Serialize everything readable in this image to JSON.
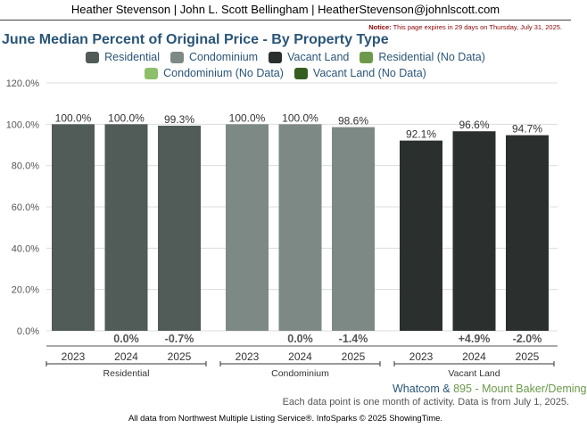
{
  "header": {
    "text": "Heather Stevenson | John L. Scott Bellingham | HeatherStevenson@johnlscott.com"
  },
  "notice": {
    "label": "Notice:",
    "text": "This page expires in 29 days on Thursday, July 31, 2025."
  },
  "colors": {
    "residential": "#515b57",
    "condominium": "#7d8985",
    "vacant_land": "#2b302e",
    "residential_no_data": "#6d9a4a",
    "condominium_no_data": "#8dbf6a",
    "vacant_land_no_data": "#355e1e",
    "title": "#2a5578"
  },
  "chart_data": {
    "type": "bar",
    "title": "June Median Percent of Original Price - By Property Type",
    "ylim": [
      0,
      120
    ],
    "y_ticks": [
      "0.0%",
      "20.0%",
      "40.0%",
      "60.0%",
      "80.0%",
      "100.0%",
      "120.0%"
    ],
    "grid": true,
    "legend": {
      "row1": [
        {
          "name": "Residential",
          "color_key": "residential"
        },
        {
          "name": "Condominium",
          "color_key": "condominium"
        },
        {
          "name": "Vacant Land",
          "color_key": "vacant_land"
        },
        {
          "name": "Residential (No Data)",
          "color_key": "residential_no_data"
        }
      ],
      "row2": [
        {
          "name": "Condominium (No Data)",
          "color_key": "condominium_no_data"
        },
        {
          "name": "Vacant Land (No Data)",
          "color_key": "vacant_land_no_data"
        }
      ]
    },
    "groups": [
      {
        "name": "Residential",
        "color_key": "residential",
        "bars": [
          {
            "year": "2023",
            "value": 100.0,
            "label": "100.0%",
            "change": ""
          },
          {
            "year": "2024",
            "value": 100.0,
            "label": "100.0%",
            "change": "0.0%"
          },
          {
            "year": "2025",
            "value": 99.3,
            "label": "99.3%",
            "change": "-0.7%"
          }
        ]
      },
      {
        "name": "Condominium",
        "color_key": "condominium",
        "bars": [
          {
            "year": "2023",
            "value": 100.0,
            "label": "100.0%",
            "change": ""
          },
          {
            "year": "2024",
            "value": 100.0,
            "label": "100.0%",
            "change": "0.0%"
          },
          {
            "year": "2025",
            "value": 98.6,
            "label": "98.6%",
            "change": "-1.4%"
          }
        ]
      },
      {
        "name": "Vacant Land",
        "color_key": "vacant_land",
        "bars": [
          {
            "year": "2023",
            "value": 92.1,
            "label": "92.1%",
            "change": ""
          },
          {
            "year": "2024",
            "value": 96.6,
            "label": "96.6%",
            "change": "+4.9%"
          },
          {
            "year": "2025",
            "value": 94.7,
            "label": "94.7%",
            "change": "-2.0%"
          }
        ]
      }
    ]
  },
  "region": {
    "area": "Whatcom",
    "amp": "&",
    "subarea": "895 - Mount Baker/Deming"
  },
  "data_note": "Each data point is one month of activity. Data is from July 1, 2025.",
  "footer": "All data from Northwest Multiple Listing Service®. InfoSparks © 2025 ShowingTime."
}
